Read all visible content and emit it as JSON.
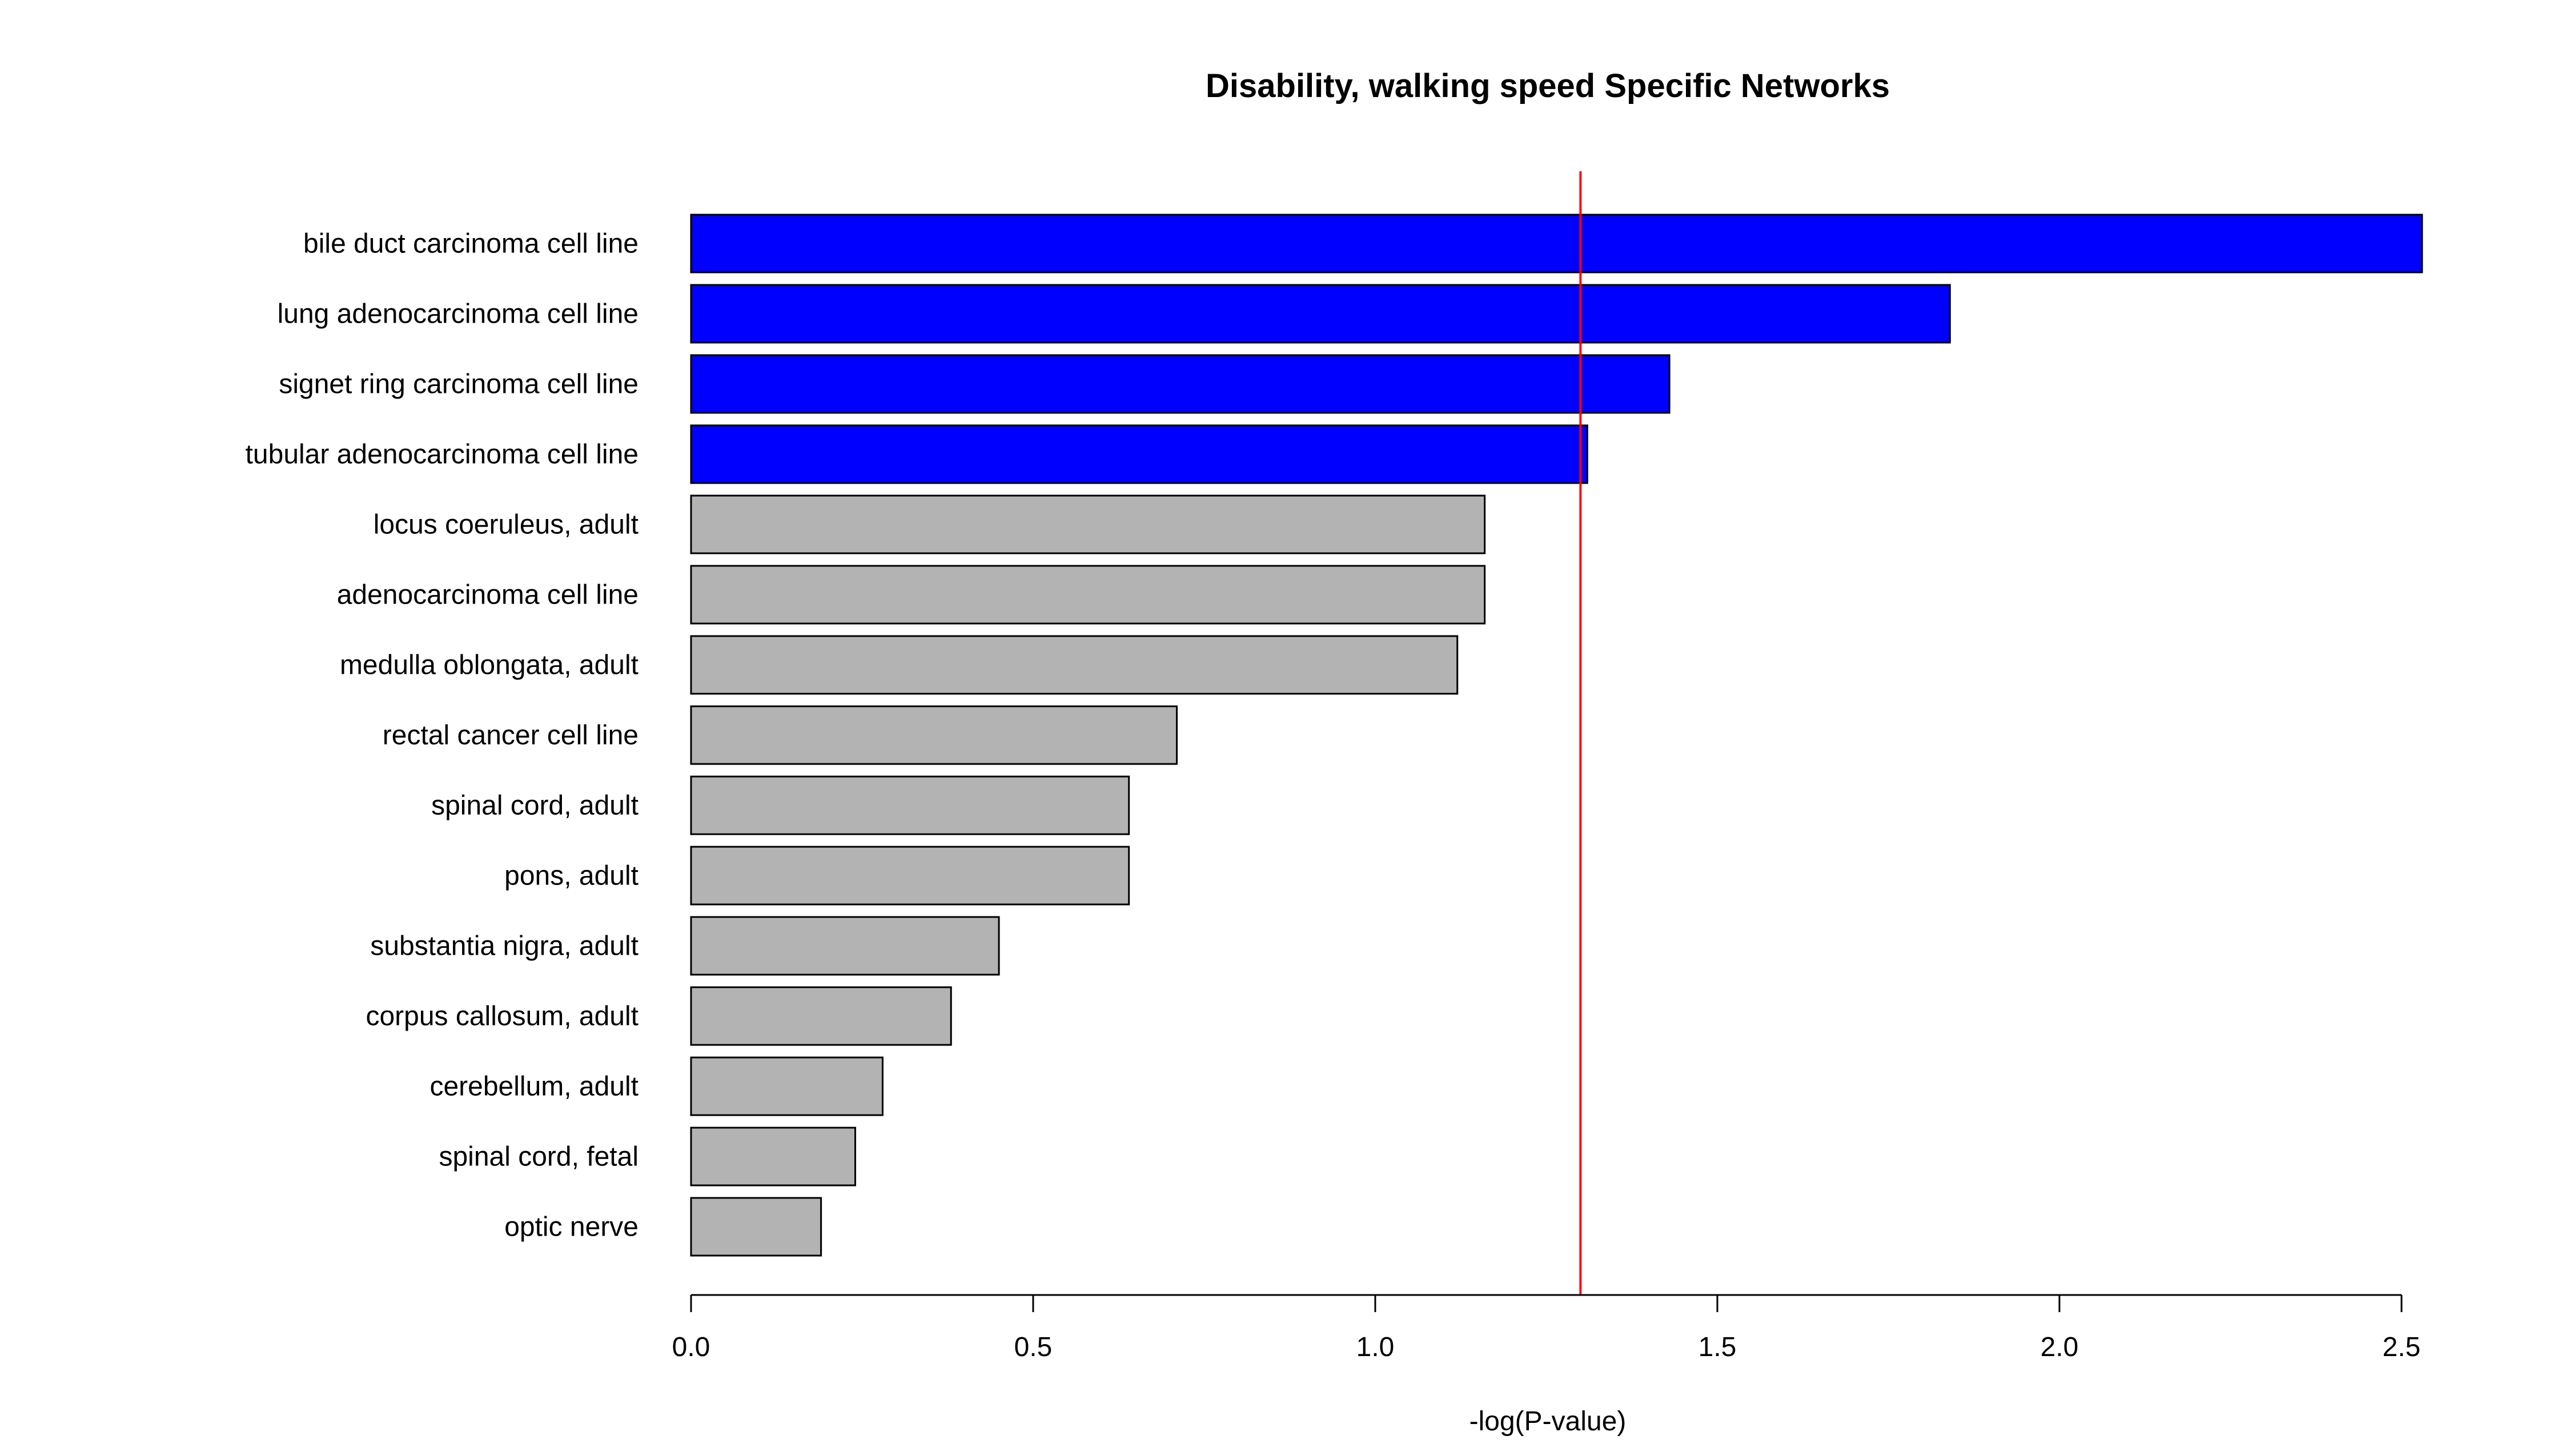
{
  "chart_data": {
    "type": "bar",
    "orientation": "horizontal",
    "title": "Disability, walking speed Specific Networks",
    "xlabel": "-log(P-value)",
    "ylabel": "",
    "xlim": [
      0,
      2.5
    ],
    "xticks": [
      0.0,
      0.5,
      1.0,
      1.5,
      2.0,
      2.5
    ],
    "xtick_labels": [
      "0.0",
      "0.5",
      "1.0",
      "1.5",
      "2.0",
      "2.5"
    ],
    "grid": false,
    "legend": "none",
    "categories": [
      "bile duct carcinoma cell line",
      "lung adenocarcinoma cell line",
      "signet ring carcinoma cell line",
      "tubular adenocarcinoma cell line",
      "locus coeruleus, adult",
      "adenocarcinoma cell line",
      "medulla oblongata, adult",
      "rectal cancer cell line",
      "spinal cord, adult",
      "pons, adult",
      "substantia nigra, adult",
      "corpus callosum, adult",
      "cerebellum, adult",
      "spinal cord, fetal",
      "optic nerve"
    ],
    "values": [
      2.53,
      1.84,
      1.43,
      1.31,
      1.16,
      1.16,
      1.12,
      0.71,
      0.64,
      0.64,
      0.45,
      0.38,
      0.28,
      0.24,
      0.19
    ],
    "threshold": 1.3,
    "colors": {
      "significant": "#0000ff",
      "not_significant": "#b3b3b3",
      "bar_border": "#000000",
      "threshold_line": "#ff0000",
      "axis": "#000000"
    }
  }
}
